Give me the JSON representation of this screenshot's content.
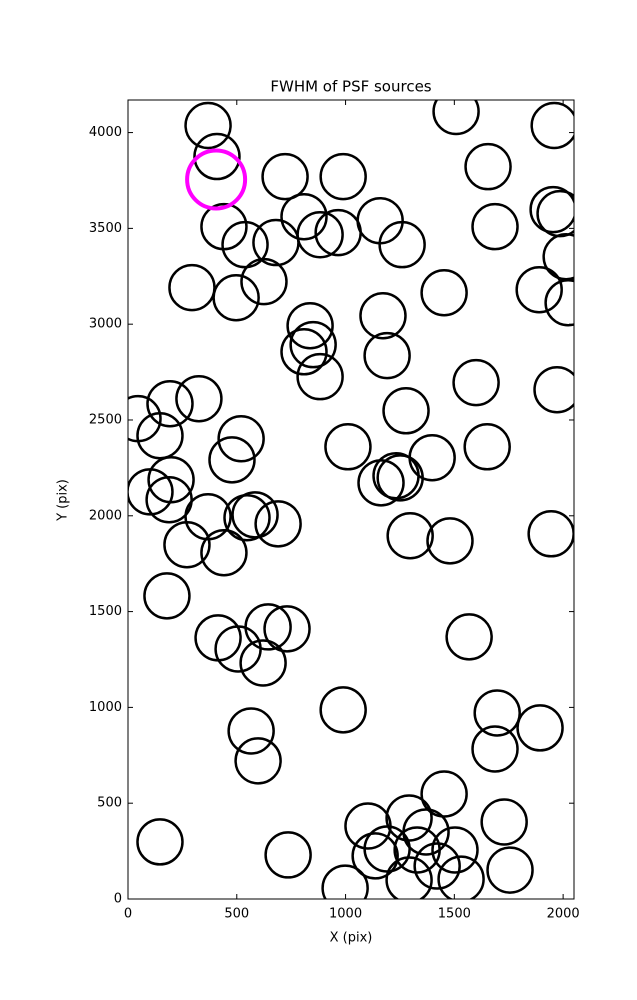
{
  "chart_data": {
    "type": "scatter",
    "title": "FWHM of PSF sources",
    "xlabel": "X (pix)",
    "ylabel": "Y (pix)",
    "xlim": [
      0,
      2050
    ],
    "ylim": [
      0,
      4170
    ],
    "xticks": [
      0,
      500,
      1000,
      1500,
      2000
    ],
    "yticks": [
      0,
      500,
      1000,
      1500,
      2000,
      2500,
      3000,
      3500,
      4000
    ],
    "series": [
      {
        "color": "#000000",
        "x": [
          368,
          409,
          722,
          989,
          1508,
          1655,
          1959,
          1954,
          1986,
          1687,
          441,
          538,
          680,
          809,
          883,
          966,
          1159,
          1260,
          2014,
          294,
          497,
          625,
          1453,
          1890,
          2023,
          837,
          851,
          809,
          1172,
          1191,
          883,
          1600,
          1972,
          46,
          193,
          326,
          1278,
          147,
          520,
          478,
          1011,
          1398,
          1651,
          198,
          101,
          189,
          1163,
          1232,
          1251,
          368,
          547,
          584,
          690,
          1297,
          1480,
          1945,
          271,
          441,
          179,
          644,
          731,
          414,
          506,
          621,
          1568,
          989,
          1697,
          1687,
          1894,
          566,
          598,
          147,
          736,
          1453,
          1729,
          1103,
          1292,
          1370,
          1136,
          1191,
          1329,
          1503,
          1421,
          1292,
          1531,
          1756,
          998
        ],
        "values": [
          4037,
          3875,
          3770,
          3770,
          4110,
          3822,
          4037,
          3598,
          3577,
          3509,
          3509,
          3415,
          3426,
          3561,
          3467,
          3478,
          3540,
          3415,
          3352,
          3191,
          3138,
          3222,
          3164,
          3180,
          3112,
          2992,
          2893,
          2856,
          3044,
          2836,
          2726,
          2695,
          2658,
          2507,
          2585,
          2611,
          2548,
          2418,
          2402,
          2292,
          2360,
          2303,
          2360,
          2188,
          2125,
          2084,
          2172,
          2209,
          2198,
          1995,
          1990,
          2005,
          1958,
          1896,
          1869,
          1906,
          1849,
          1807,
          1582,
          1420,
          1410,
          1363,
          1305,
          1232,
          1368,
          987,
          971,
          783,
          893,
          877,
          721,
          298,
          230,
          548,
          402,
          381,
          423,
          350,
          225,
          261,
          256,
          256,
          172,
          99,
          104,
          151,
          57
        ]
      },
      {
        "color": "#ff00ff",
        "x": [
          405
        ],
        "values": [
          3755
        ]
      }
    ]
  }
}
